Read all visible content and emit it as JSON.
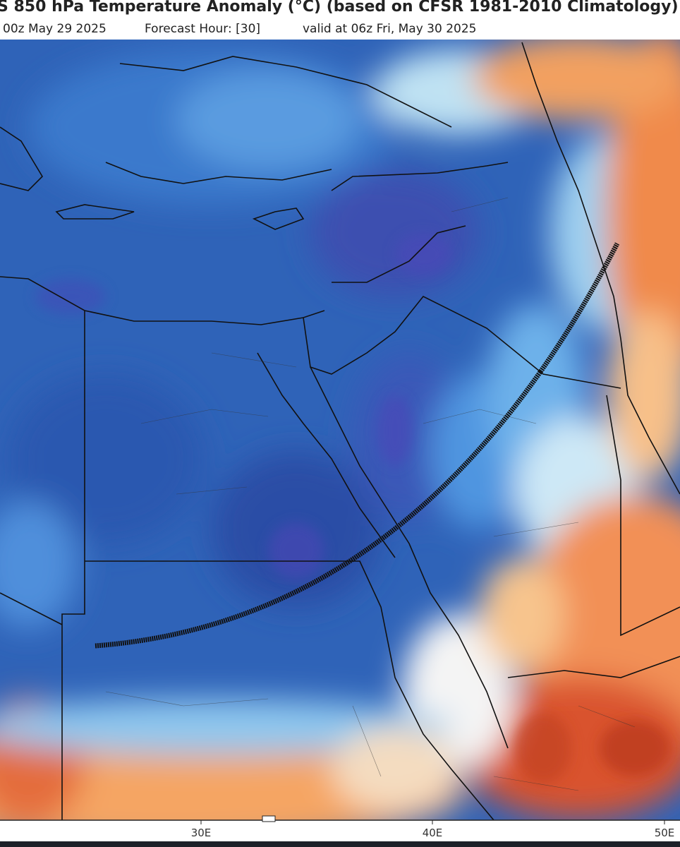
{
  "header": {
    "title": "S 850 hPa Temperature Anomaly (°C) (based on CFSR 1981-2010 Climatology)",
    "subtitle": [
      "00z May 29 2025",
      "Forecast Hour: [30]",
      "valid at 06z Fri, May 30 2025"
    ]
  },
  "map": {
    "lon_labels": [
      "30E",
      "40E",
      "50E"
    ]
  }
}
